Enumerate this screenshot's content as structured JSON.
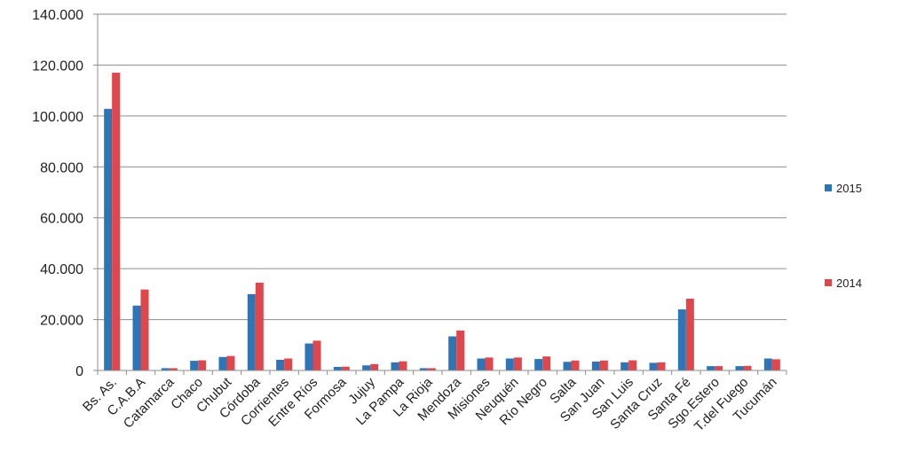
{
  "chart_data": {
    "type": "bar",
    "title": "",
    "xlabel": "",
    "ylabel": "",
    "ylim": [
      0,
      140000
    ],
    "yticks": [
      "0",
      "20.000",
      "40.000",
      "60.000",
      "80.000",
      "100.000",
      "120.000",
      "140.000"
    ],
    "grid": true,
    "legend_position": "right",
    "categories": [
      "Bs. As.",
      "C.A.B.A",
      "Catamarca",
      "Chaco",
      "Chubut",
      "Córdoba",
      "Corrientes",
      "Entre Ríos",
      "Formosa",
      "Jujuy",
      "La Pampa",
      "La Rioja",
      "Mendoza",
      "Misiones",
      "Neuquén",
      "Río Negro",
      "Salta",
      "San Juan",
      "San Luis",
      "Santa Cruz",
      "Santa Fé",
      "Sgo.Estero",
      "T.del Fuego",
      "Tucumán"
    ],
    "series": [
      {
        "name": "2015",
        "color": "#2e75b6",
        "values": [
          102800,
          25500,
          900,
          3800,
          5300,
          30000,
          4200,
          10600,
          1400,
          2000,
          3200,
          900,
          13400,
          4700,
          4700,
          4500,
          3400,
          3500,
          3200,
          3000,
          24000,
          1700,
          1700,
          4700
        ]
      },
      {
        "name": "2014",
        "color": "#e0474c",
        "values": [
          117000,
          31800,
          900,
          4000,
          5700,
          34500,
          4700,
          11700,
          1500,
          2500,
          3600,
          900,
          15700,
          5100,
          5100,
          5500,
          3900,
          3900,
          4000,
          3200,
          28200,
          1700,
          1800,
          4400
        ]
      }
    ]
  }
}
